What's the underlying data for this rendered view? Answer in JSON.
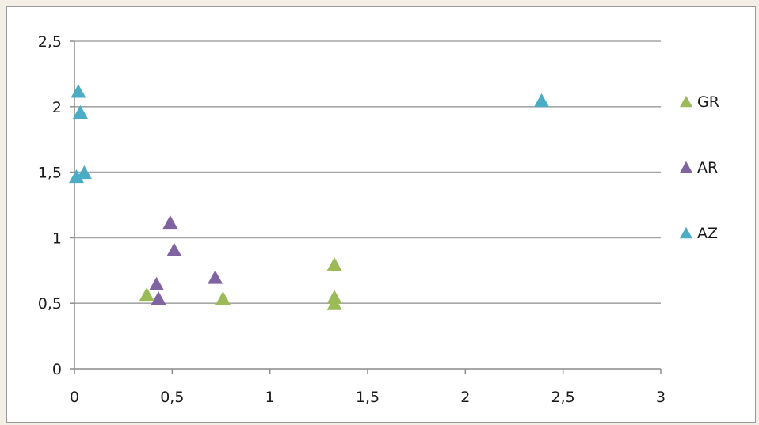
{
  "chart_data": {
    "type": "scatter",
    "title": "",
    "xlabel": "",
    "ylabel": "",
    "xlim": [
      0,
      3
    ],
    "ylim": [
      0,
      2.5
    ],
    "x_ticks": [
      "0",
      "0,5",
      "1",
      "1,5",
      "2",
      "2,5",
      "3"
    ],
    "y_ticks": [
      "0",
      "0,5",
      "1",
      "1,5",
      "2",
      "2,5"
    ],
    "grid": "horizontal",
    "legend_position": "right",
    "marker": "triangle",
    "series": [
      {
        "name": "GR",
        "color": "#9bbb59",
        "points": [
          [
            0.37,
            0.57
          ],
          [
            0.76,
            0.54
          ],
          [
            1.33,
            0.8
          ],
          [
            1.33,
            0.55
          ],
          [
            1.33,
            0.5
          ]
        ]
      },
      {
        "name": "AR",
        "color": "#8064a2",
        "points": [
          [
            0.42,
            0.65
          ],
          [
            0.43,
            0.54
          ],
          [
            0.49,
            1.12
          ],
          [
            0.51,
            0.91
          ],
          [
            0.72,
            0.7
          ]
        ]
      },
      {
        "name": "AZ",
        "color": "#4bacc6",
        "points": [
          [
            0.02,
            2.12
          ],
          [
            0.03,
            1.96
          ],
          [
            0.05,
            1.5
          ],
          [
            0.01,
            1.47
          ],
          [
            2.39,
            2.05
          ]
        ]
      }
    ]
  }
}
